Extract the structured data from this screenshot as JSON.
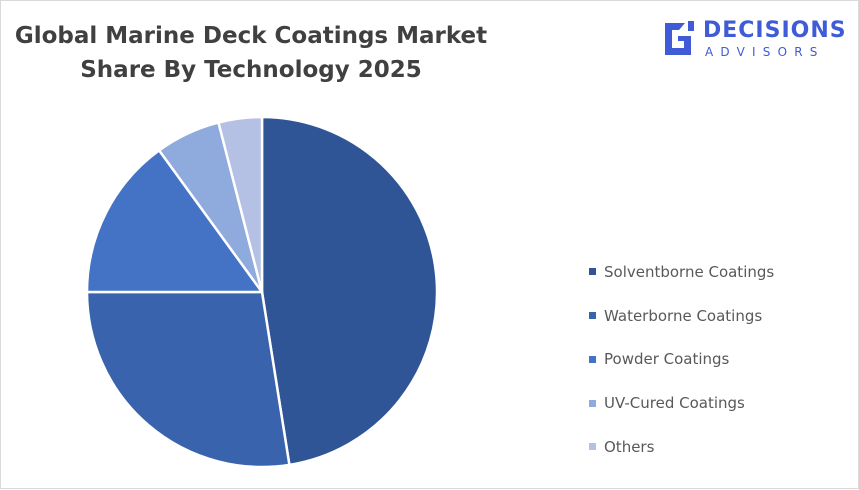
{
  "chart_data": {
    "type": "pie",
    "title": "Global Marine Deck Coatings Market Share By Technology 2025",
    "title_lines": [
      "Global Marine Deck Coatings Market",
      "Share By Technology 2025"
    ],
    "categories": [
      "Solventborne Coatings",
      "Waterborne Coatings",
      "Powder Coatings",
      "UV-Cured Coatings",
      "Others"
    ],
    "values": [
      47.5,
      27.5,
      15,
      6,
      4
    ],
    "unit": "%",
    "colors": [
      "#2f5597",
      "#3a63ad",
      "#4472c4",
      "#8faadc",
      "#b4c0e4"
    ],
    "legend_position": "right",
    "start_angle_deg": 0,
    "direction": "clockwise"
  },
  "brand": {
    "name_line1": "DECISIONS",
    "name_line2": "ADVISORS",
    "color": "#3f5bd6",
    "icon": "decisions-advisors-logo-icon"
  }
}
